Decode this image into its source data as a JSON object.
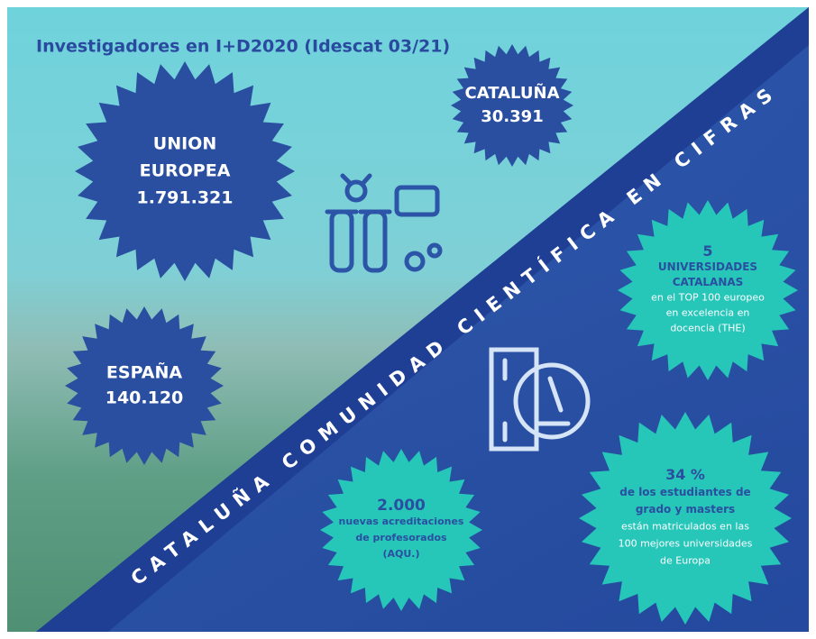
{
  "title": "Investigadores en I+D2020 (Idescat 03/21)",
  "banner": "CATALUÑA COMUNIDAD CIENTÍFICA EN CIFRAS",
  "badges": [
    {
      "lines": [
        "UNION",
        "EUROPEA",
        "1.791.321"
      ]
    },
    {
      "lines": [
        "CATALUÑA",
        "30.391"
      ]
    },
    {
      "lines": [
        "ESPAÑA",
        "140.120"
      ]
    },
    {
      "lines": [
        "5",
        "UNIVERSIDADES",
        "CATALANAS",
        "en el TOP 100 europeo",
        "en excelencia en",
        "docencia (THE)"
      ]
    },
    {
      "lines": [
        "2.000",
        "nuevas acreditaciones",
        "de profesorados",
        "(AQU.)"
      ]
    },
    {
      "lines": [
        "34 %",
        "de los estudiantes de",
        "grado y masters",
        "están matriculados en las",
        "100 mejores universidades",
        "de Europa"
      ]
    }
  ]
}
